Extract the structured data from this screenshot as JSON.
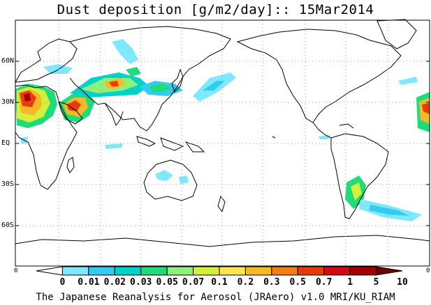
{
  "title": "Dust deposition [g/m2/day]:: 15Mar2014",
  "lat_labels": [
    "60N",
    "30N",
    "EQ",
    "30S",
    "60S"
  ],
  "lon_edge_labels": [
    "0",
    "0"
  ],
  "colorbar": {
    "labels": [
      "0",
      "0.01",
      "0.02",
      "0.03",
      "0.05",
      "0.07",
      "0.1",
      "0.2",
      "0.3",
      "0.5",
      "0.7",
      "1",
      "5",
      "10"
    ],
    "colors": [
      "#ffffff",
      "#7fe8ff",
      "#33ccf0",
      "#00d2c8",
      "#20dc78",
      "#8cf07a",
      "#d2f03c",
      "#fae650",
      "#f5b928",
      "#f57d14",
      "#e63c0a",
      "#d20a14",
      "#a50000",
      "#6e0000"
    ]
  },
  "footer": "The Japanese Reanalysis for Aerosol (JRAero) v1.0 MRI/KU_RIAM"
}
